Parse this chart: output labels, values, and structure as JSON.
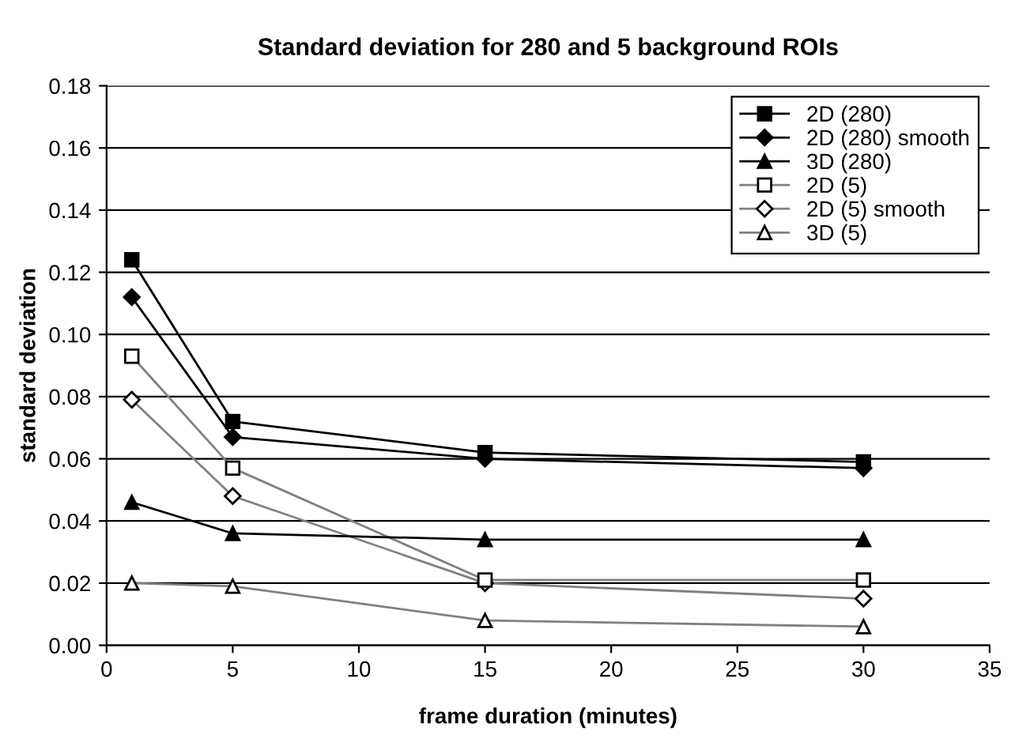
{
  "chart_data": {
    "type": "line",
    "title": "Standard deviation for 280 and 5 background ROIs",
    "xlabel": "frame duration (minutes)",
    "ylabel": "standard deviation",
    "x": [
      1,
      5,
      15,
      30
    ],
    "series": [
      {
        "name": "2D (280)",
        "color": "#000000",
        "marker": "square",
        "values": [
          0.124,
          0.072,
          0.062,
          0.059
        ]
      },
      {
        "name": "2D (280) smooth",
        "color": "#000000",
        "marker": "diamond",
        "values": [
          0.112,
          0.067,
          0.06,
          0.057
        ]
      },
      {
        "name": "3D (280)",
        "color": "#000000",
        "marker": "triangle",
        "values": [
          0.046,
          0.036,
          0.034,
          0.034
        ]
      },
      {
        "name": "2D (5)",
        "color": "#808080",
        "marker": "square",
        "values": [
          0.093,
          0.057,
          0.021,
          0.021
        ]
      },
      {
        "name": "2D (5) smooth",
        "color": "#808080",
        "marker": "diamond",
        "values": [
          0.079,
          0.048,
          0.02,
          0.015
        ]
      },
      {
        "name": "3D (5)",
        "color": "#808080",
        "marker": "triangle",
        "values": [
          0.02,
          0.019,
          0.008,
          0.006
        ]
      }
    ],
    "xlim": [
      0,
      35
    ],
    "xticks": [
      0,
      5,
      10,
      15,
      20,
      25,
      30,
      35
    ],
    "ylim": [
      0,
      0.18
    ],
    "yticks": [
      {
        "value": 0,
        "label": "0.00"
      },
      {
        "value": 0.02,
        "label": "0.02"
      },
      {
        "value": 0.04,
        "label": "0.04"
      },
      {
        "value": 0.06,
        "label": "0.06"
      },
      {
        "value": 0.08,
        "label": "0.08"
      },
      {
        "value": 0.1,
        "label": "0.10"
      },
      {
        "value": 0.12,
        "label": "0.12"
      },
      {
        "value": 0.14,
        "label": "0.14"
      },
      {
        "value": 0.16,
        "label": "0.16"
      },
      {
        "value": 0.18,
        "label": "0.18"
      }
    ],
    "grid": "y",
    "legend": "top right",
    "line_style": "solid"
  }
}
